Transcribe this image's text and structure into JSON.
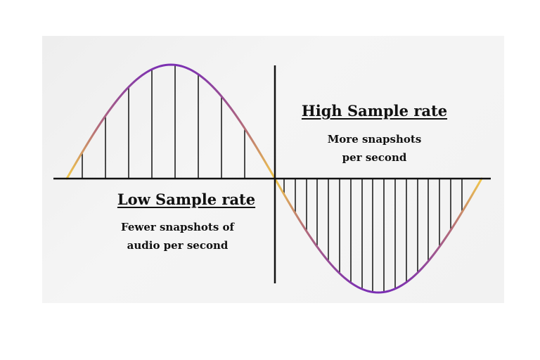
{
  "high_section": {
    "title": "High Sample rate",
    "caption_line1": "More snapshots",
    "caption_line2": "per second"
  },
  "low_section": {
    "title": "Low Sample rate",
    "caption_line1": "Fewer snapshots of",
    "caption_line2": "audio per second"
  },
  "colors": {
    "wave_gradient": [
      "#f2c94c",
      "#b36b7a",
      "#7b2fb3"
    ],
    "lines": "#111111",
    "panel_background": "#f1f1f1"
  }
}
